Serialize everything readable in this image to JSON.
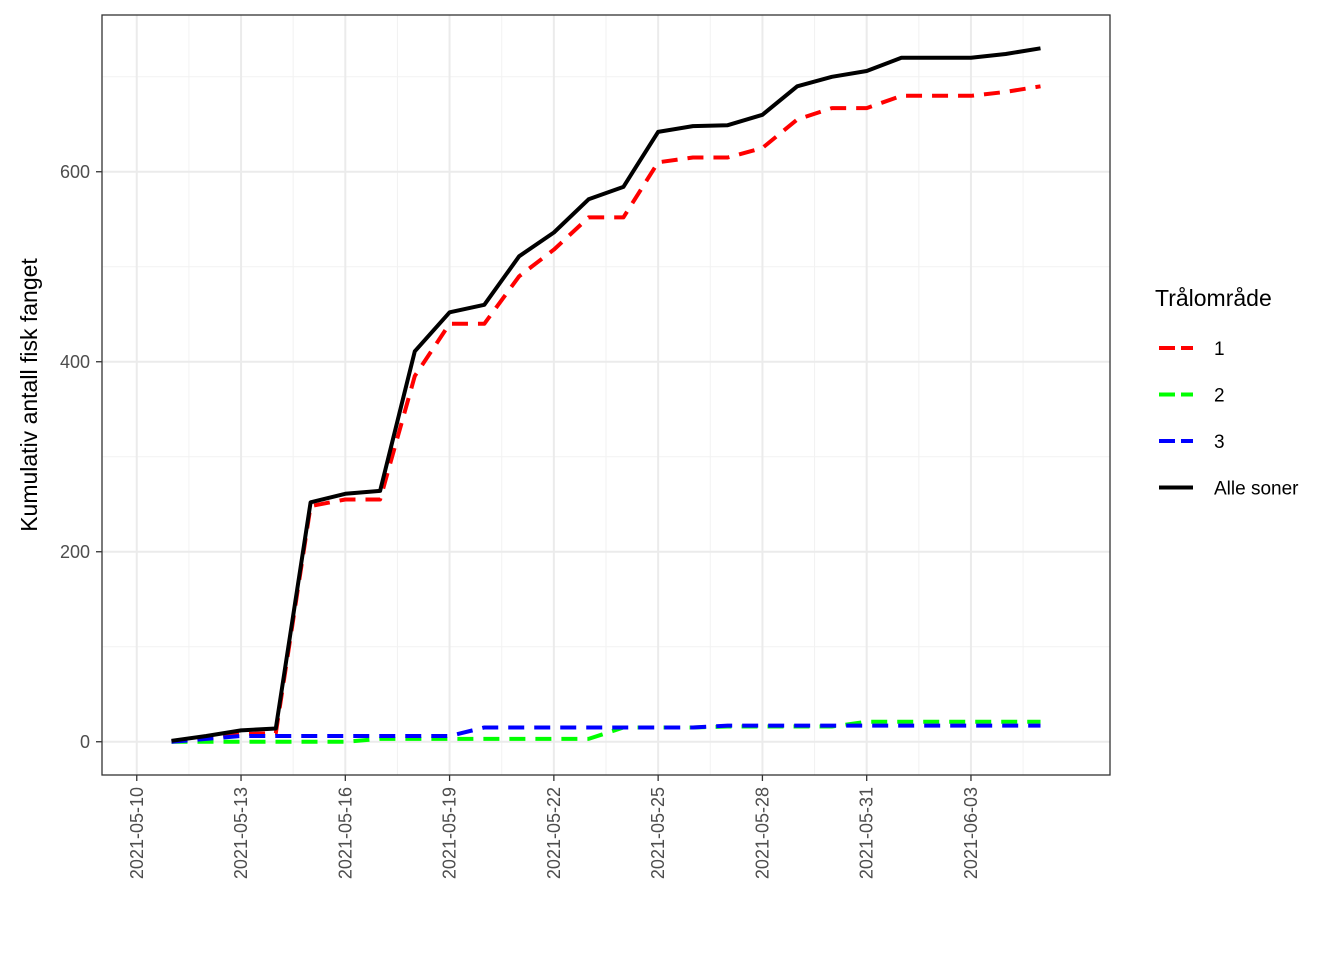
{
  "chart_data": {
    "type": "line",
    "ylabel": "Kumulativ antall fisk fanget",
    "xlabel": "",
    "legend_title": "Trålområde",
    "legend_position": "right",
    "grid": true,
    "xlim": [
      "2021-05-09",
      "2021-06-07"
    ],
    "ylim": [
      -35,
      765
    ],
    "x_ticks": [
      "2021-05-10",
      "2021-05-13",
      "2021-05-16",
      "2021-05-19",
      "2021-05-22",
      "2021-05-25",
      "2021-05-28",
      "2021-05-31",
      "2021-06-03"
    ],
    "y_ticks": [
      0,
      200,
      400,
      600
    ],
    "series": [
      {
        "name": "1",
        "color": "#ff0000",
        "dash": "dashed",
        "points": [
          [
            "2021-05-11",
            0
          ],
          [
            "2021-05-12",
            4
          ],
          [
            "2021-05-13",
            8
          ],
          [
            "2021-05-14",
            9
          ],
          [
            "2021-05-15",
            248
          ],
          [
            "2021-05-16",
            255
          ],
          [
            "2021-05-17",
            255
          ],
          [
            "2021-05-18",
            385
          ],
          [
            "2021-05-19",
            440
          ],
          [
            "2021-05-20",
            440
          ],
          [
            "2021-05-21",
            490
          ],
          [
            "2021-05-22",
            518
          ],
          [
            "2021-05-23",
            552
          ],
          [
            "2021-05-24",
            552
          ],
          [
            "2021-05-25",
            610
          ],
          [
            "2021-05-26",
            615
          ],
          [
            "2021-05-27",
            615
          ],
          [
            "2021-05-28",
            625
          ],
          [
            "2021-05-29",
            655
          ],
          [
            "2021-05-30",
            667
          ],
          [
            "2021-05-31",
            667
          ],
          [
            "2021-06-01",
            680
          ],
          [
            "2021-06-02",
            680
          ],
          [
            "2021-06-03",
            680
          ],
          [
            "2021-06-04",
            684
          ],
          [
            "2021-06-05",
            690
          ]
        ]
      },
      {
        "name": "2",
        "color": "#00ff00",
        "dash": "dashed",
        "points": [
          [
            "2021-05-11",
            0
          ],
          [
            "2021-05-12",
            0
          ],
          [
            "2021-05-13",
            0
          ],
          [
            "2021-05-14",
            0
          ],
          [
            "2021-05-15",
            0
          ],
          [
            "2021-05-16",
            0
          ],
          [
            "2021-05-17",
            3
          ],
          [
            "2021-05-18",
            3
          ],
          [
            "2021-05-19",
            3
          ],
          [
            "2021-05-20",
            3
          ],
          [
            "2021-05-21",
            3
          ],
          [
            "2021-05-22",
            3
          ],
          [
            "2021-05-23",
            3
          ],
          [
            "2021-05-24",
            15
          ],
          [
            "2021-05-25",
            15
          ],
          [
            "2021-05-26",
            15
          ],
          [
            "2021-05-27",
            16
          ],
          [
            "2021-05-28",
            16
          ],
          [
            "2021-05-29",
            16
          ],
          [
            "2021-05-30",
            16
          ],
          [
            "2021-05-31",
            21
          ],
          [
            "2021-06-01",
            21
          ],
          [
            "2021-06-02",
            21
          ],
          [
            "2021-06-03",
            21
          ],
          [
            "2021-06-04",
            21
          ],
          [
            "2021-06-05",
            21
          ]
        ]
      },
      {
        "name": "3",
        "color": "#0000ff",
        "dash": "dashed",
        "points": [
          [
            "2021-05-11",
            0
          ],
          [
            "2021-05-12",
            3
          ],
          [
            "2021-05-13",
            6
          ],
          [
            "2021-05-14",
            6
          ],
          [
            "2021-05-15",
            6
          ],
          [
            "2021-05-16",
            6
          ],
          [
            "2021-05-17",
            6
          ],
          [
            "2021-05-18",
            6
          ],
          [
            "2021-05-19",
            6
          ],
          [
            "2021-05-20",
            15
          ],
          [
            "2021-05-21",
            15
          ],
          [
            "2021-05-22",
            15
          ],
          [
            "2021-05-23",
            15
          ],
          [
            "2021-05-24",
            15
          ],
          [
            "2021-05-25",
            15
          ],
          [
            "2021-05-26",
            15
          ],
          [
            "2021-05-27",
            17
          ],
          [
            "2021-05-28",
            17
          ],
          [
            "2021-05-29",
            17
          ],
          [
            "2021-05-30",
            17
          ],
          [
            "2021-05-31",
            17
          ],
          [
            "2021-06-01",
            17
          ],
          [
            "2021-06-02",
            17
          ],
          [
            "2021-06-03",
            17
          ],
          [
            "2021-06-04",
            17
          ],
          [
            "2021-06-05",
            17
          ]
        ]
      },
      {
        "name": "Alle soner",
        "color": "#000000",
        "dash": "solid",
        "points": [
          [
            "2021-05-11",
            1
          ],
          [
            "2021-05-12",
            6
          ],
          [
            "2021-05-13",
            12
          ],
          [
            "2021-05-14",
            14
          ],
          [
            "2021-05-15",
            252
          ],
          [
            "2021-05-16",
            261
          ],
          [
            "2021-05-17",
            264
          ],
          [
            "2021-05-18",
            411
          ],
          [
            "2021-05-19",
            452
          ],
          [
            "2021-05-20",
            460
          ],
          [
            "2021-05-21",
            511
          ],
          [
            "2021-05-22",
            536
          ],
          [
            "2021-05-23",
            571
          ],
          [
            "2021-05-24",
            584
          ],
          [
            "2021-05-25",
            642
          ],
          [
            "2021-05-26",
            648
          ],
          [
            "2021-05-27",
            649
          ],
          [
            "2021-05-28",
            660
          ],
          [
            "2021-05-29",
            690
          ],
          [
            "2021-05-30",
            700
          ],
          [
            "2021-05-31",
            706
          ],
          [
            "2021-06-01",
            720
          ],
          [
            "2021-06-02",
            720
          ],
          [
            "2021-06-03",
            720
          ],
          [
            "2021-06-04",
            724
          ],
          [
            "2021-06-05",
            730
          ]
        ]
      }
    ]
  }
}
